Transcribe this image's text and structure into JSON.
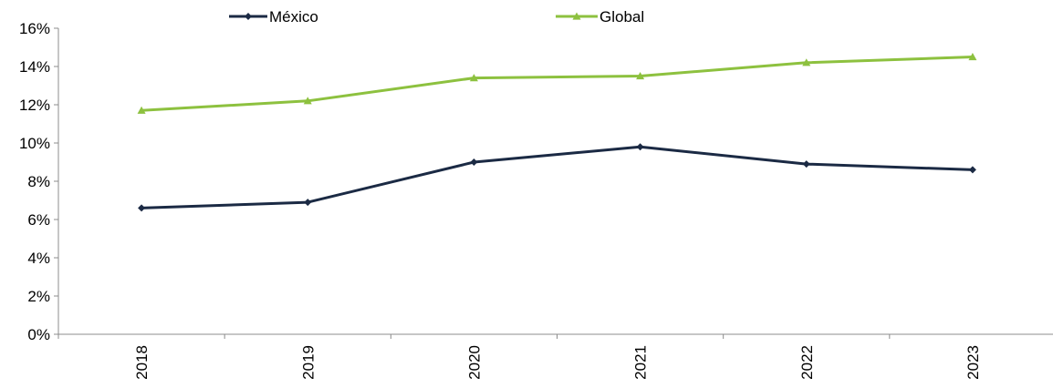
{
  "chart_data": {
    "type": "line",
    "categories": [
      "2018",
      "2019",
      "2020",
      "2021",
      "2022",
      "2023"
    ],
    "series": [
      {
        "name": "México",
        "values": [
          6.6,
          6.9,
          9.0,
          9.8,
          8.9,
          8.6
        ],
        "color": "#1b2a44",
        "marker": "diamond"
      },
      {
        "name": "Global",
        "values": [
          11.7,
          12.2,
          13.4,
          13.5,
          14.2,
          14.5
        ],
        "color": "#8dc13f",
        "marker": "triangle"
      }
    ],
    "ylim": [
      0,
      16
    ],
    "yticks": [
      "0%",
      "2%",
      "4%",
      "6%",
      "8%",
      "10%",
      "12%",
      "14%",
      "16%"
    ],
    "y_unit": "%",
    "legend": "top",
    "grid": false
  }
}
